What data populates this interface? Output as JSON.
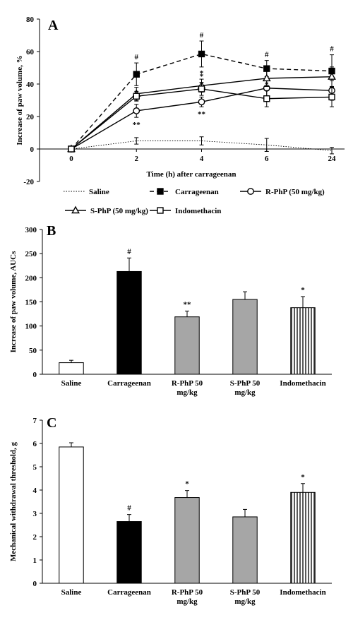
{
  "chart_data": [
    {
      "panel": "A",
      "type": "line",
      "ylabel": "Increase of paw volume, %",
      "xlabel": "Time (h) after carrageenan",
      "x": [
        "0",
        "2",
        "4",
        "6",
        "24"
      ],
      "yticks": [
        "-20",
        "0",
        "20",
        "40",
        "60",
        "80"
      ],
      "ylim": [
        -20,
        80
      ],
      "series": [
        {
          "name": "Saline",
          "style": "dotted",
          "marker": "none",
          "values": [
            0,
            5,
            5,
            2.5,
            -1
          ],
          "err": [
            0,
            2,
            2.5,
            4,
            2
          ],
          "sig": [
            "",
            "",
            "",
            "",
            ""
          ]
        },
        {
          "name": "Carrageenan",
          "style": "dashed",
          "marker": "filled-square",
          "values": [
            0,
            46,
            58.5,
            49.5,
            48
          ],
          "err": [
            0,
            7,
            8,
            5,
            10
          ],
          "sig": [
            "",
            "#",
            "#",
            "#",
            "#"
          ]
        },
        {
          "name": "R-PhP (50 mg/kg)",
          "style": "solid",
          "marker": "open-circle",
          "values": [
            0,
            23.5,
            29,
            37.5,
            36
          ],
          "err": [
            0,
            4,
            3,
            5,
            6
          ],
          "sig": [
            "",
            "**",
            "**",
            "",
            ""
          ]
        },
        {
          "name": "S-PhP (50 mg/kg)",
          "style": "solid",
          "marker": "open-triangle",
          "values": [
            0,
            34,
            39,
            43.5,
            44.5
          ],
          "err": [
            0,
            4,
            4,
            5,
            6
          ],
          "sig": [
            "",
            "",
            "*",
            "",
            ""
          ]
        },
        {
          "name": "Indomethacin",
          "style": "solid",
          "marker": "open-square",
          "values": [
            0,
            32.5,
            37,
            31,
            32
          ],
          "err": [
            0,
            3,
            4,
            5,
            6
          ],
          "sig": [
            "",
            "",
            "*",
            "*",
            ""
          ]
        }
      ]
    },
    {
      "panel": "B",
      "type": "bar",
      "ylabel": "Increase of paw volume, AUCs",
      "categories": [
        "Saline",
        "Carrageenan",
        "R-PhP 50 mg/kg",
        "S-PhP 50 mg/kg",
        "Indomethacin"
      ],
      "values": [
        24,
        213,
        119,
        155,
        138
      ],
      "err": [
        5,
        28,
        12,
        16,
        23
      ],
      "sig": [
        "",
        "#",
        "**",
        "",
        "*"
      ],
      "fills": [
        "white",
        "black",
        "gray",
        "gray",
        "striped"
      ],
      "yticks": [
        "0",
        "50",
        "100",
        "150",
        "200",
        "250",
        "300"
      ],
      "ylim": [
        0,
        300
      ]
    },
    {
      "panel": "C",
      "type": "bar",
      "ylabel": "Mechanical withdrawal threshold, g",
      "categories": [
        "Saline",
        "Carrageenan",
        "R-PhP 50 mg/kg",
        "S-PhP 50 mg/kg",
        "Indomethacin"
      ],
      "values": [
        5.85,
        2.65,
        3.68,
        2.85,
        3.9
      ],
      "err": [
        0.18,
        0.3,
        0.3,
        0.32,
        0.38
      ],
      "sig": [
        "",
        "#",
        "*",
        "",
        "*"
      ],
      "fills": [
        "white",
        "black",
        "gray",
        "gray",
        "striped"
      ],
      "yticks": [
        "0",
        "1",
        "2",
        "3",
        "4",
        "5",
        "6",
        "7"
      ],
      "ylim": [
        0,
        7
      ]
    }
  ],
  "colors": {
    "gray": "#a6a6a6",
    "black": "#000000",
    "white": "#ffffff"
  }
}
